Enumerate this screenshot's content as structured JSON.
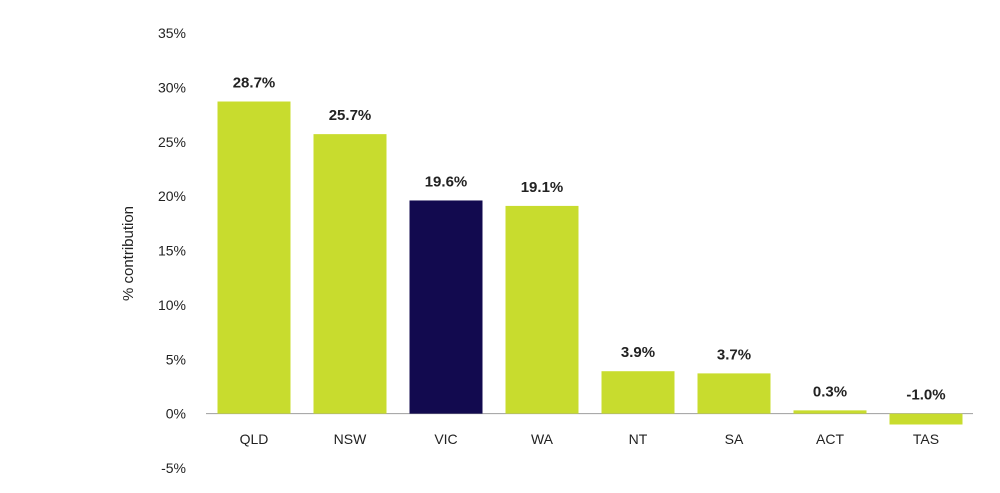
{
  "chart_data": {
    "type": "bar",
    "title": "",
    "xlabel": "",
    "ylabel": "% contribution",
    "ylim": [
      -5,
      35
    ],
    "yticks": [
      "-5%",
      "0%",
      "5%",
      "10%",
      "15%",
      "20%",
      "25%",
      "30%",
      "35%"
    ],
    "categories": [
      "QLD",
      "NSW",
      "VIC",
      "WA",
      "NT",
      "SA",
      "ACT",
      "TAS"
    ],
    "values": [
      28.7,
      25.7,
      19.6,
      19.1,
      3.9,
      3.7,
      0.3,
      -1.0
    ],
    "data_labels": [
      "28.7%",
      "25.7%",
      "19.6%",
      "19.1%",
      "3.9%",
      "3.7%",
      "0.3%",
      "-1.0%"
    ],
    "highlight_category": "VIC",
    "colors": {
      "default": "#c8dc2e",
      "highlight": "#120a4f",
      "axis": "#9e9e9e",
      "text": "#222222"
    },
    "grid": false,
    "legend": "none"
  }
}
